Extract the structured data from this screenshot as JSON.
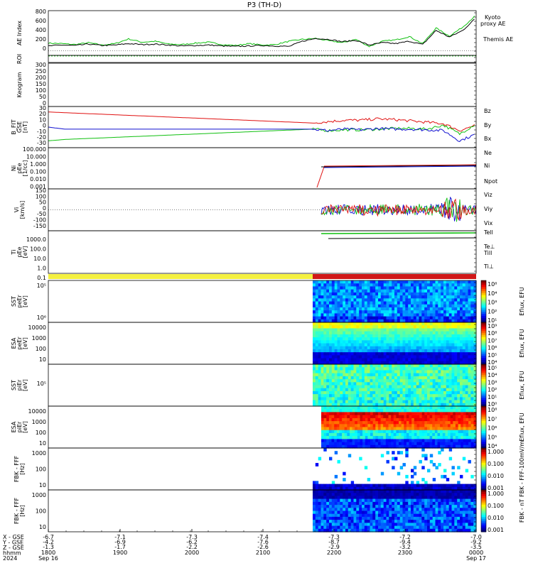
{
  "title": "P3 (TH-D)",
  "colors": {
    "red": "#e01010",
    "green": "#10c010",
    "blue": "#1010d0",
    "black": "#000000",
    "kyoto": "#10c010",
    "yellow": "#f4f040"
  },
  "chart_data": [
    {
      "name": "ae-index",
      "type": "line",
      "ylabel": "AE Index",
      "yticks": [
        "800",
        "600",
        "400",
        "200",
        "0"
      ],
      "ylim": [
        -100,
        850
      ],
      "series": [
        {
          "name": "Kyoto proxy AE",
          "color": "#10c010",
          "values": [
            160,
            150,
            130,
            170,
            120,
            150,
            250,
            180,
            200,
            140,
            130,
            160,
            180,
            130,
            110,
            150,
            120,
            130,
            200,
            240,
            260,
            210,
            170,
            240,
            90,
            200,
            230,
            300,
            150,
            480,
            310,
            500,
            760
          ]
        },
        {
          "name": "Themis AE",
          "color": "#000000",
          "values": [
            100,
            120,
            110,
            140,
            110,
            120,
            150,
            130,
            140,
            120,
            100,
            110,
            120,
            100,
            90,
            100,
            110,
            100,
            90,
            200,
            260,
            240,
            190,
            220,
            120,
            170,
            150,
            200,
            130,
            430,
            290,
            430,
            700
          ]
        }
      ],
      "legend": [
        "Kyoto",
        "proxy AE",
        "Themis AE"
      ]
    },
    {
      "name": "roi",
      "type": "line",
      "ylabel": "ROI"
    },
    {
      "name": "keogram",
      "type": "heatmap",
      "ylabel": "Keogram",
      "yticks": [
        "300",
        "250",
        "200",
        "150",
        "100",
        "50",
        "0"
      ],
      "ylim": [
        0,
        300
      ]
    },
    {
      "name": "b-field",
      "type": "line",
      "ylabel": "B_FIT",
      "ylabel2": "GSE",
      "ylabel3": "[nT]",
      "yticks": [
        "30",
        "20",
        "10",
        "0",
        "-10",
        "-20",
        "-30"
      ],
      "ylim": [
        -30,
        30
      ],
      "series": [
        {
          "name": "Bz",
          "color": "#e01010",
          "values": [
            22,
            21,
            20,
            19,
            18,
            17,
            16,
            15,
            14,
            13,
            12,
            11,
            10,
            9,
            8,
            7,
            6,
            8,
            10,
            10,
            12,
            11,
            9,
            7,
            5,
            -5,
            3
          ]
        },
        {
          "name": "By",
          "color": "#10c010",
          "values": [
            -20,
            -18,
            -17,
            -16,
            -15,
            -14,
            -13,
            -12,
            -11,
            -10,
            -9,
            -8,
            -7,
            -6,
            -5,
            -4,
            -3,
            -5,
            -4,
            -4,
            -3,
            -2,
            -2,
            -3,
            3,
            -10,
            5
          ]
        },
        {
          "name": "Bx",
          "color": "#1010d0",
          "values": [
            0,
            -3,
            -3,
            -3,
            -3,
            -3,
            -3,
            -3,
            -3,
            -3,
            -3,
            -3,
            -3,
            -3,
            -3,
            -3,
            -3,
            -5,
            -3,
            -4,
            -2,
            -3,
            -3,
            -4,
            -5,
            -20,
            -10
          ]
        }
      ]
    },
    {
      "name": "density",
      "type": "line",
      "ylabel": "Ni",
      "ylabel2": "pEe",
      "ylabel3": "[1/cc]",
      "yticks": [
        "100.000",
        "10.000",
        "1.000",
        "0.100",
        "0.010",
        "0.001"
      ],
      "series": [
        {
          "name": "Ne",
          "color": "#e01010"
        },
        {
          "name": "Ni",
          "color": "#000000"
        },
        {
          "name": "Npot",
          "color": "#1010d0"
        }
      ]
    },
    {
      "name": "velocity",
      "type": "line",
      "ylabel": "Vi",
      "ylabel2": "[km/s]",
      "yticks": [
        "150",
        "100",
        "50",
        "0",
        "-50",
        "-100",
        "-150"
      ],
      "ylim": [
        -150,
        150
      ],
      "series": [
        {
          "name": "Viz",
          "color": "#e01010"
        },
        {
          "name": "Viy",
          "color": "#10c010"
        },
        {
          "name": "Vix",
          "color": "#1010d0"
        }
      ]
    },
    {
      "name": "temperature",
      "type": "line",
      "ylabel": "Ti",
      "ylabel2": "pEe",
      "ylabel3": "[eV]",
      "yticks": [
        "1000.0",
        "100.0",
        "10.0",
        "1.0",
        "0.1"
      ],
      "series": [
        {
          "name": "Tell",
          "color": "#000000"
        },
        {
          "name": "Te⊥",
          "color": "#e01010"
        },
        {
          "name": "Till",
          "color": "#10c010"
        },
        {
          "name": "Ti⊥",
          "color": "#1010d0"
        }
      ]
    },
    {
      "name": "sst-e",
      "type": "heatmap",
      "ylabel": "SST",
      "ylabel2": "peEr",
      "ylabel3": "[eV]",
      "yticks": [
        "10⁵",
        "10⁶"
      ],
      "cbar": [
        "10⁸",
        "10⁴",
        "10³",
        "10²",
        "10¹"
      ],
      "cbar_label": "Eflux, EFU"
    },
    {
      "name": "esa-e",
      "type": "heatmap",
      "ylabel": "ESA",
      "ylabel2": "peEr",
      "ylabel3": "[eV]",
      "yticks": [
        "10000",
        "1000",
        "100",
        "10"
      ],
      "cbar": [
        "10⁹",
        "10⁸",
        "10⁷",
        "10⁶",
        "10⁵",
        "10⁴"
      ],
      "cbar_label": "Eflux, EFU"
    },
    {
      "name": "sst-i",
      "type": "heatmap",
      "ylabel": "SST",
      "ylabel2": "piEr",
      "ylabel3": "[eV]",
      "yticks": [
        "10⁵"
      ],
      "cbar": [
        "10⁵",
        "10⁴",
        "10³",
        "10²",
        "10¹",
        "10⁰"
      ],
      "cbar_label": "Eflux, EFU"
    },
    {
      "name": "esa-i",
      "type": "heatmap",
      "ylabel": "ESA",
      "ylabel2": "piEr",
      "ylabel3": "[eV]",
      "yticks": [
        "10000",
        "1000",
        "100",
        "10"
      ],
      "cbar": [
        "10⁸",
        "10⁷",
        "10⁶",
        "10⁵",
        "10⁴"
      ],
      "cbar_label": "Eflux, EFU"
    },
    {
      "name": "fbk-fff-e",
      "type": "heatmap",
      "ylabel": "FBK - FFF",
      "ylabel2": "[Hz]",
      "yticks": [
        "1000",
        "100",
        "10"
      ],
      "cbar": [
        "1.000",
        "0.100",
        "0.010",
        "0.001"
      ],
      "cbar_label": "FBK - FFF-100mV/m"
    },
    {
      "name": "fbk-fff-b",
      "type": "heatmap",
      "ylabel": "FBK - FFF",
      "ylabel2": "[Hz]",
      "yticks": [
        "1000",
        "100",
        "10"
      ],
      "cbar": [
        "1.000",
        "0.100",
        "0.010",
        "0.001"
      ],
      "cbar_label": "FBK - nT"
    }
  ],
  "xaxis": {
    "row_labels": [
      "X - GSE",
      "Y - GSE",
      "Z - GSE",
      "hhmm",
      "2024"
    ],
    "ticks": [
      {
        "x": "-6.7",
        "y": "-4.2",
        "z": "-1.3",
        "t": "1800",
        "d": "Sep 16"
      },
      {
        "x": "-7.1",
        "y": "-6.9",
        "z": "-1.7",
        "t": "1900",
        "d": ""
      },
      {
        "x": "-7.3",
        "y": "-6.2",
        "z": "-2.2",
        "t": "2000",
        "d": ""
      },
      {
        "x": "-7.4",
        "y": "-7.6",
        "z": "-2.6",
        "t": "2100",
        "d": ""
      },
      {
        "x": "-7.3",
        "y": "-8.7",
        "z": "-2.9",
        "t": "2200",
        "d": ""
      },
      {
        "x": "-7.2",
        "y": "-9.4",
        "z": "-3.2",
        "t": "2300",
        "d": ""
      },
      {
        "x": "-7.0",
        "y": "-9.2",
        "z": "-3.5",
        "t": "0000",
        "d": "Sep 17"
      }
    ]
  }
}
